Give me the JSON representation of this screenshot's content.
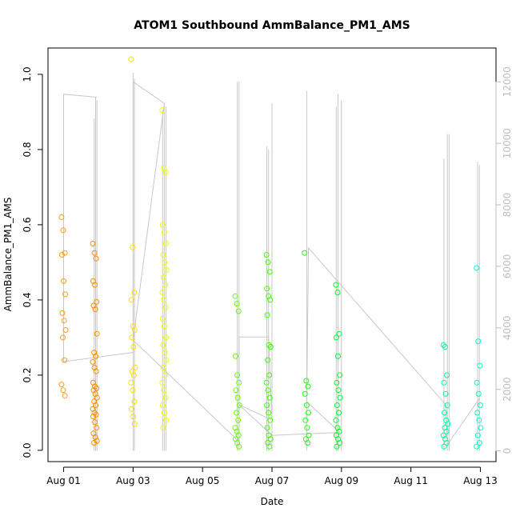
{
  "chart_data": {
    "type": "scatter",
    "title": "ATOM1 Southbound AmmBalance_PM1_AMS",
    "xlabel": "Date",
    "ylabel": "AmmBalance_PM1_AMS",
    "x_range_days": [
      0.0,
      12.5
    ],
    "xlim_days": [
      -0.45,
      12.45
    ],
    "ylim": [
      -0.03,
      1.07
    ],
    "y_ticks": [
      0.0,
      0.2,
      0.4,
      0.6,
      0.8,
      1.0
    ],
    "y_tick_labels": [
      "0.0",
      "0.2",
      "0.4",
      "0.6",
      "0.8",
      "1.0"
    ],
    "x_ticks_days": [
      0,
      2,
      4,
      6,
      8,
      10,
      12
    ],
    "x_tick_labels": [
      "Aug 01",
      "Aug 03",
      "Aug 05",
      "Aug 07",
      "Aug 09",
      "Aug 11",
      "Aug 13"
    ],
    "secondary_axis": {
      "label": "",
      "ylim": [
        -350,
        13100
      ],
      "ticks": [
        0,
        2000,
        4000,
        6000,
        8000,
        10000,
        12000
      ],
      "tick_labels": [
        "0",
        "2000",
        "4000",
        "6000",
        "8000",
        "10000",
        "12000"
      ],
      "color": "#bdbdbd"
    },
    "point_color_scale": "time-gradient orange→yellow→green→cyan",
    "clusters": [
      {
        "day": 0.0,
        "color": "#ff9b1a",
        "values": [
          0.62,
          0.585,
          0.525,
          0.52,
          0.45,
          0.415,
          0.365,
          0.345,
          0.32,
          0.3,
          0.24,
          0.175,
          0.16,
          0.145
        ]
      },
      {
        "day": 0.9,
        "color": "#ff8c00",
        "values": [
          0.55,
          0.525,
          0.51,
          0.45,
          0.44,
          0.395,
          0.385,
          0.375,
          0.31,
          0.26,
          0.25,
          0.235,
          0.22,
          0.21,
          0.18,
          0.17,
          0.165,
          0.16,
          0.15,
          0.14,
          0.13,
          0.12,
          0.11,
          0.1,
          0.095,
          0.09,
          0.075,
          0.06,
          0.045,
          0.035,
          0.025,
          0.02
        ]
      },
      {
        "day": 2.0,
        "color": "#ffdd00",
        "values": [
          1.04,
          0.54,
          0.42,
          0.4,
          0.33,
          0.32,
          0.3,
          0.275,
          0.22,
          0.21,
          0.2,
          0.18,
          0.16,
          0.13,
          0.11,
          0.09,
          0.07
        ]
      },
      {
        "day": 2.9,
        "color": "#f0ff00",
        "values": [
          0.905,
          0.75,
          0.74,
          0.6,
          0.58,
          0.55,
          0.52,
          0.5,
          0.48,
          0.46,
          0.44,
          0.42,
          0.4,
          0.38,
          0.35,
          0.33,
          0.3,
          0.28,
          0.26,
          0.24,
          0.22,
          0.2,
          0.18,
          0.16,
          0.14,
          0.12,
          0.1,
          0.08,
          0.06
        ]
      },
      {
        "day": 5.0,
        "color": "#66ff00",
        "values": [
          0.41,
          0.39,
          0.37,
          0.25,
          0.2,
          0.18,
          0.16,
          0.14,
          0.12,
          0.1,
          0.08,
          0.06,
          0.05,
          0.04,
          0.03,
          0.02,
          0.01
        ]
      },
      {
        "day": 5.9,
        "color": "#3cff00",
        "values": [
          0.52,
          0.5,
          0.475,
          0.43,
          0.41,
          0.4,
          0.36,
          0.28,
          0.275,
          0.24,
          0.2,
          0.18,
          0.16,
          0.14,
          0.12,
          0.1,
          0.08,
          0.06,
          0.04,
          0.03,
          0.02,
          0.01
        ]
      },
      {
        "day": 7.0,
        "color": "#1cff10",
        "values": [
          0.525,
          0.185,
          0.17,
          0.15,
          0.12,
          0.1,
          0.08,
          0.06,
          0.04,
          0.03,
          0.02
        ]
      },
      {
        "day": 7.9,
        "color": "#00ff2a",
        "values": [
          0.44,
          0.42,
          0.31,
          0.3,
          0.25,
          0.2,
          0.18,
          0.16,
          0.14,
          0.12,
          0.1,
          0.08,
          0.06,
          0.05,
          0.04,
          0.03,
          0.02,
          0.01
        ]
      },
      {
        "day": 11.0,
        "color": "#00ffa0",
        "values": [
          0.28,
          0.275,
          0.2,
          0.18,
          0.15,
          0.12,
          0.1,
          0.08,
          0.07,
          0.06,
          0.05,
          0.04,
          0.03,
          0.02,
          0.01
        ]
      },
      {
        "day": 11.95,
        "color": "#00ffcc",
        "values": [
          0.485,
          0.29,
          0.225,
          0.18,
          0.15,
          0.12,
          0.1,
          0.08,
          0.06,
          0.04,
          0.02,
          0.01
        ]
      }
    ],
    "secondary_series": {
      "color": "#c8c8c8",
      "spikes": [
        {
          "day": 0.88,
          "value": 10800
        },
        {
          "day": 0.92,
          "value": 11500
        },
        {
          "day": 0.96,
          "value": 11400
        },
        {
          "day": 2.0,
          "value": 12300
        },
        {
          "day": 2.04,
          "value": 12100
        },
        {
          "day": 2.85,
          "value": 11100
        },
        {
          "day": 2.9,
          "value": 11300
        },
        {
          "day": 2.95,
          "value": 11200
        },
        {
          "day": 5.0,
          "value": 12000
        },
        {
          "day": 5.05,
          "value": 12000
        },
        {
          "day": 5.85,
          "value": 9900
        },
        {
          "day": 5.9,
          "value": 9800
        },
        {
          "day": 6.0,
          "value": 11300
        },
        {
          "day": 7.0,
          "value": 11700
        },
        {
          "day": 7.85,
          "value": 11200
        },
        {
          "day": 7.9,
          "value": 11600
        },
        {
          "day": 8.0,
          "value": 11400
        },
        {
          "day": 10.95,
          "value": 9500
        },
        {
          "day": 11.05,
          "value": 10300
        },
        {
          "day": 11.1,
          "value": 10300
        },
        {
          "day": 11.92,
          "value": 9400
        },
        {
          "day": 11.97,
          "value": 9300
        }
      ],
      "connectors": [
        [
          0.0,
          11600
        ],
        [
          0.95,
          11500
        ],
        [
          0.0,
          11600
        ],
        [
          0.0,
          2900
        ],
        [
          2.0,
          3200
        ],
        [
          2.0,
          12000
        ],
        [
          2.9,
          11300
        ],
        [
          2.0,
          3600
        ],
        [
          5.05,
          300
        ],
        [
          5.05,
          3700
        ],
        [
          5.9,
          3700
        ],
        [
          6.0,
          1000
        ],
        [
          5.05,
          1500
        ],
        [
          6.0,
          500
        ],
        [
          7.95,
          600
        ],
        [
          7.0,
          1600
        ],
        [
          7.05,
          6600
        ],
        [
          11.0,
          1500
        ],
        [
          11.05,
          200
        ],
        [
          11.97,
          1700
        ]
      ]
    }
  }
}
